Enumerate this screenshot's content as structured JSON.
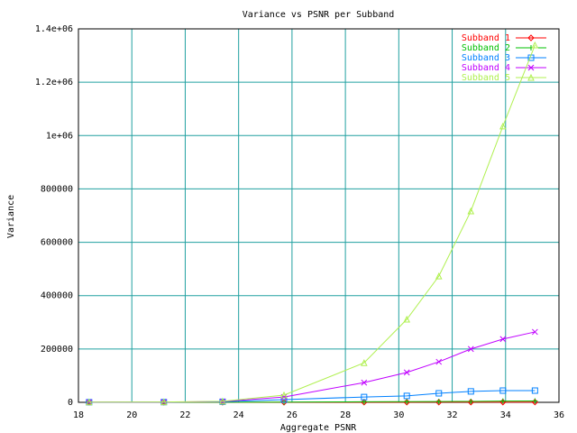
{
  "chart_data": {
    "type": "line",
    "title": "Variance vs PSNR per Subband",
    "xlabel": "Aggregate PSNR",
    "ylabel": "Variance",
    "x": [
      18.4,
      21.2,
      23.4,
      25.7,
      28.7,
      30.3,
      31.5,
      32.7,
      33.9,
      35.1
    ],
    "series": [
      {
        "name": "Subband 1",
        "color": "#ff0000",
        "values": [
          100,
          150,
          200,
          300,
          500,
          600,
          700,
          800,
          900,
          1000
        ]
      },
      {
        "name": "Subband 2",
        "color": "#00c000",
        "values": [
          200,
          300,
          500,
          1000,
          2000,
          2500,
          3000,
          3500,
          4500,
          5000
        ]
      },
      {
        "name": "Subband 3",
        "color": "#0080ff",
        "values": [
          500,
          800,
          2000,
          10000,
          20000,
          24000,
          34000,
          41000,
          44000,
          44000
        ]
      },
      {
        "name": "Subband 4",
        "color": "#c000ff",
        "values": [
          700,
          1000,
          3000,
          20000,
          74000,
          112000,
          152000,
          200000,
          237000,
          264000
        ]
      },
      {
        "name": "Subband 5",
        "color": "#b0f050",
        "values": [
          800,
          1200,
          4000,
          27000,
          148000,
          311000,
          473000,
          717000,
          1035000,
          1339000
        ]
      }
    ],
    "xlim": [
      18,
      36
    ],
    "xticks": [
      18,
      20,
      22,
      24,
      26,
      28,
      30,
      32,
      34,
      36
    ],
    "ylim": [
      0,
      1400000
    ],
    "yticks": [
      0,
      200000,
      400000,
      600000,
      800000,
      {
        "value": 1000000,
        "label": "1e+06"
      },
      {
        "value": 1200000,
        "label": "1.2e+06"
      },
      {
        "value": 1400000,
        "label": "1.4e+06"
      }
    ],
    "grid": true,
    "legend": "top-right"
  }
}
